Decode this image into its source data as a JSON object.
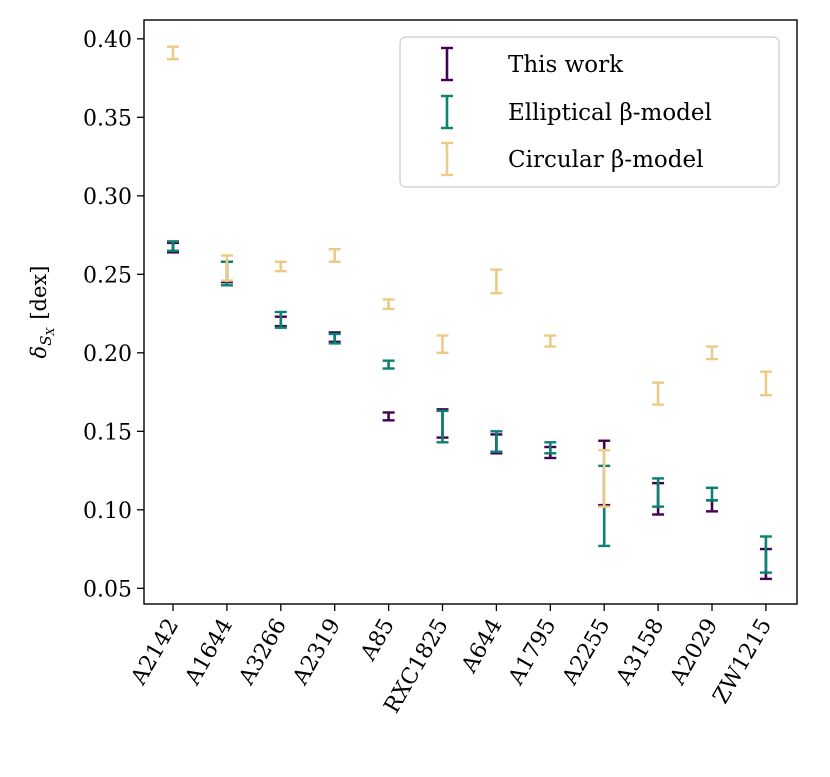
{
  "chart_data": {
    "type": "errorbar",
    "title": "",
    "xlabel": "",
    "ylabel": "δS_X [dex]",
    "ylabel_symbol": "δ",
    "ylabel_subscript": "S",
    "ylabel_subsubscript": "X",
    "ylabel_unit": "[dex]",
    "ylim": [
      0.04,
      0.412
    ],
    "yticks": [
      0.05,
      0.1,
      0.15,
      0.2,
      0.25,
      0.3,
      0.35,
      0.4
    ],
    "ytick_labels": [
      "0.05",
      "0.10",
      "0.15",
      "0.20",
      "0.25",
      "0.30",
      "0.35",
      "0.40"
    ],
    "legend_position": "top-right",
    "categories": [
      "A2142",
      "A1644",
      "A3266",
      "A2319",
      "A85",
      "RXC1825",
      "A644",
      "A1795",
      "A2255",
      "A3158",
      "A2029",
      "ZW1215"
    ],
    "series": [
      {
        "name": "This work",
        "color": "#440154",
        "low": [
          0.264,
          0.245,
          0.217,
          0.207,
          0.157,
          0.146,
          0.136,
          0.133,
          0.103,
          0.097,
          0.099,
          0.056
        ],
        "high": [
          0.27,
          0.258,
          0.223,
          0.213,
          0.162,
          0.164,
          0.148,
          0.14,
          0.144,
          0.117,
          0.106,
          0.075
        ]
      },
      {
        "name": "Elliptical β-model",
        "color": "#0c8170",
        "low": [
          0.265,
          0.243,
          0.216,
          0.206,
          0.19,
          0.143,
          0.137,
          0.136,
          0.077,
          0.102,
          0.106,
          0.06
        ],
        "high": [
          0.271,
          0.258,
          0.226,
          0.212,
          0.195,
          0.163,
          0.15,
          0.143,
          0.128,
          0.12,
          0.114,
          0.083
        ]
      },
      {
        "name": "Circular β-model",
        "color": "#eccb87",
        "low": [
          0.387,
          0.246,
          0.252,
          0.258,
          0.228,
          0.2,
          0.238,
          0.204,
          0.102,
          0.167,
          0.196,
          0.173
        ],
        "high": [
          0.395,
          0.262,
          0.258,
          0.266,
          0.234,
          0.211,
          0.253,
          0.211,
          0.138,
          0.181,
          0.204,
          0.188
        ]
      }
    ]
  }
}
